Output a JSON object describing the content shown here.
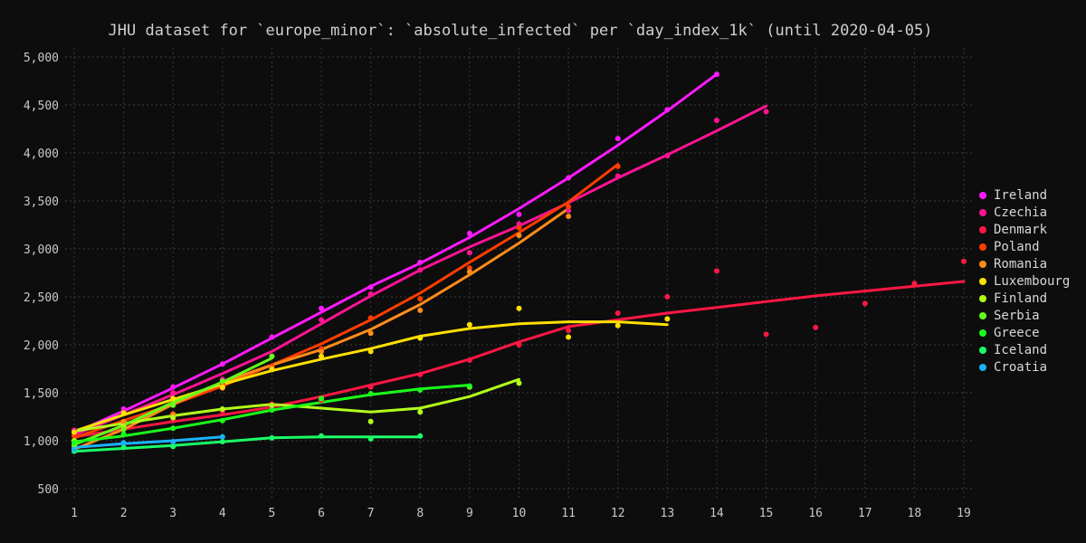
{
  "chart_data": {
    "type": "line",
    "title": "JHU dataset for `europe_minor`: `absolute_infected` per `day_index_1k` (until 2020-04-05)",
    "xlabel": "",
    "ylabel": "",
    "xlim": [
      1,
      19
    ],
    "ylim": [
      500,
      5000
    ],
    "x_ticks": [
      1,
      2,
      3,
      4,
      5,
      6,
      7,
      8,
      9,
      10,
      11,
      12,
      13,
      14,
      15,
      16,
      17,
      18,
      19
    ],
    "y_ticks": [
      500,
      1000,
      1500,
      2000,
      2500,
      3000,
      3500,
      4000,
      4500,
      5000
    ],
    "y_tick_labels": [
      "500",
      "1,000",
      "1,500",
      "2,000",
      "2,500",
      "3,000",
      "3,500",
      "4,000",
      "4,500",
      "5,000"
    ],
    "grid": true,
    "legend_position": "right",
    "series": [
      {
        "name": "Ireland",
        "color": "#ff1aff",
        "points": [
          [
            1,
            1100
          ],
          [
            2,
            1330
          ],
          [
            3,
            1560
          ],
          [
            4,
            1800
          ],
          [
            5,
            2080
          ],
          [
            6,
            2380
          ],
          [
            7,
            2600
          ],
          [
            8,
            2860
          ],
          [
            9,
            3160
          ],
          [
            10,
            3360
          ],
          [
            11,
            3740
          ],
          [
            12,
            4150
          ],
          [
            13,
            4450
          ],
          [
            14,
            4820
          ]
        ],
        "fit": [
          [
            1,
            1080
          ],
          [
            2,
            1310
          ],
          [
            3,
            1550
          ],
          [
            4,
            1800
          ],
          [
            5,
            2070
          ],
          [
            6,
            2340
          ],
          [
            7,
            2610
          ],
          [
            8,
            2850
          ],
          [
            9,
            3120
          ],
          [
            10,
            3420
          ],
          [
            11,
            3740
          ],
          [
            12,
            4080
          ],
          [
            13,
            4440
          ],
          [
            14,
            4820
          ]
        ]
      },
      {
        "name": "Czechia",
        "color": "#ff1493",
        "points": [
          [
            1,
            1110
          ],
          [
            2,
            1300
          ],
          [
            3,
            1500
          ],
          [
            4,
            1640
          ],
          [
            5,
            1880
          ],
          [
            6,
            2260
          ],
          [
            7,
            2530
          ],
          [
            8,
            2780
          ],
          [
            9,
            2960
          ],
          [
            10,
            3260
          ],
          [
            11,
            3400
          ],
          [
            12,
            3760
          ],
          [
            13,
            3970
          ],
          [
            14,
            4340
          ],
          [
            15,
            4430
          ]
        ],
        "fit": [
          [
            1,
            1060
          ],
          [
            2,
            1270
          ],
          [
            3,
            1480
          ],
          [
            4,
            1700
          ],
          [
            5,
            1930
          ],
          [
            6,
            2220
          ],
          [
            7,
            2510
          ],
          [
            8,
            2780
          ],
          [
            9,
            3020
          ],
          [
            10,
            3240
          ],
          [
            11,
            3480
          ],
          [
            12,
            3740
          ],
          [
            13,
            3980
          ],
          [
            14,
            4230
          ],
          [
            15,
            4490
          ]
        ]
      },
      {
        "name": "Denmark",
        "color": "#ff1744",
        "points": [
          [
            1,
            1070
          ],
          [
            2,
            1150
          ],
          [
            3,
            1210
          ],
          [
            4,
            1310
          ],
          [
            5,
            1380
          ],
          [
            6,
            1420
          ],
          [
            7,
            1560
          ],
          [
            8,
            1690
          ],
          [
            9,
            1840
          ],
          [
            10,
            2000
          ],
          [
            11,
            2150
          ],
          [
            12,
            2330
          ],
          [
            13,
            2500
          ],
          [
            14,
            2770
          ],
          [
            15,
            2110
          ],
          [
            16,
            2180
          ],
          [
            17,
            2430
          ],
          [
            18,
            2640
          ],
          [
            19,
            2870
          ]
        ],
        "fit": [
          [
            1,
            1040
          ],
          [
            2,
            1120
          ],
          [
            3,
            1200
          ],
          [
            4,
            1270
          ],
          [
            5,
            1350
          ],
          [
            6,
            1460
          ],
          [
            7,
            1580
          ],
          [
            8,
            1700
          ],
          [
            9,
            1850
          ],
          [
            10,
            2030
          ],
          [
            11,
            2190
          ],
          [
            12,
            2260
          ],
          [
            13,
            2330
          ],
          [
            14,
            2390
          ],
          [
            15,
            2450
          ],
          [
            16,
            2510
          ],
          [
            17,
            2560
          ],
          [
            18,
            2610
          ],
          [
            19,
            2660
          ]
        ]
      },
      {
        "name": "Poland",
        "color": "#ff3d00",
        "points": [
          [
            1,
            1050
          ],
          [
            2,
            1150
          ],
          [
            3,
            1280
          ],
          [
            4,
            1590
          ],
          [
            5,
            1780
          ],
          [
            6,
            1960
          ],
          [
            7,
            2280
          ],
          [
            8,
            2480
          ],
          [
            9,
            2800
          ],
          [
            10,
            3220
          ],
          [
            11,
            3440
          ],
          [
            12,
            3860
          ]
        ],
        "fit": [
          [
            1,
            1030
          ],
          [
            2,
            1210
          ],
          [
            3,
            1380
          ],
          [
            4,
            1570
          ],
          [
            5,
            1790
          ],
          [
            6,
            2010
          ],
          [
            7,
            2260
          ],
          [
            8,
            2540
          ],
          [
            9,
            2860
          ],
          [
            10,
            3170
          ],
          [
            11,
            3490
          ],
          [
            12,
            3880
          ]
        ]
      },
      {
        "name": "Romania",
        "color": "#ff8c1a",
        "points": [
          [
            1,
            920
          ],
          [
            2,
            1200
          ],
          [
            3,
            1270
          ],
          [
            4,
            1550
          ],
          [
            5,
            1760
          ],
          [
            6,
            1930
          ],
          [
            7,
            2120
          ],
          [
            8,
            2360
          ],
          [
            9,
            2760
          ],
          [
            10,
            3140
          ],
          [
            11,
            3340
          ]
        ],
        "fit": [
          [
            1,
            910
          ],
          [
            2,
            1120
          ],
          [
            3,
            1380
          ],
          [
            4,
            1610
          ],
          [
            5,
            1790
          ],
          [
            6,
            1950
          ],
          [
            7,
            2160
          ],
          [
            8,
            2420
          ],
          [
            9,
            2730
          ],
          [
            10,
            3060
          ],
          [
            11,
            3420
          ]
        ]
      },
      {
        "name": "Luxembourg",
        "color": "#ffe000",
        "points": [
          [
            1,
            1090
          ],
          [
            2,
            1290
          ],
          [
            3,
            1440
          ],
          [
            4,
            1560
          ],
          [
            5,
            1740
          ],
          [
            6,
            1880
          ],
          [
            7,
            1930
          ],
          [
            8,
            2070
          ],
          [
            9,
            2210
          ],
          [
            10,
            2380
          ],
          [
            11,
            2080
          ],
          [
            12,
            2200
          ],
          [
            13,
            2270
          ]
        ],
        "fit": [
          [
            1,
            1100
          ],
          [
            2,
            1270
          ],
          [
            3,
            1430
          ],
          [
            4,
            1590
          ],
          [
            5,
            1730
          ],
          [
            6,
            1850
          ],
          [
            7,
            1960
          ],
          [
            8,
            2090
          ],
          [
            9,
            2170
          ],
          [
            10,
            2220
          ],
          [
            11,
            2240
          ],
          [
            12,
            2240
          ],
          [
            13,
            2210
          ]
        ]
      },
      {
        "name": "Finland",
        "color": "#b2ff1a",
        "points": [
          [
            1,
            1000
          ],
          [
            2,
            1150
          ],
          [
            3,
            1240
          ],
          [
            4,
            1330
          ],
          [
            5,
            1370
          ],
          [
            6,
            1440
          ],
          [
            7,
            1200
          ],
          [
            8,
            1300
          ],
          [
            9,
            1560
          ],
          [
            10,
            1600
          ]
        ],
        "fit": [
          [
            1,
            1100
          ],
          [
            2,
            1180
          ],
          [
            3,
            1260
          ],
          [
            4,
            1330
          ],
          [
            5,
            1380
          ],
          [
            6,
            1340
          ],
          [
            7,
            1300
          ],
          [
            8,
            1340
          ],
          [
            9,
            1460
          ],
          [
            10,
            1640
          ]
        ]
      },
      {
        "name": "Serbia",
        "color": "#66ff1a",
        "points": [
          [
            1,
            950
          ],
          [
            2,
            1120
          ],
          [
            3,
            1370
          ],
          [
            4,
            1620
          ],
          [
            5,
            1880
          ]
        ],
        "fit": [
          [
            1,
            960
          ],
          [
            2,
            1160
          ],
          [
            3,
            1400
          ],
          [
            4,
            1610
          ],
          [
            5,
            1860
          ]
        ]
      },
      {
        "name": "Greece",
        "color": "#1aff1a",
        "points": [
          [
            1,
            980
          ],
          [
            2,
            1070
          ],
          [
            3,
            1130
          ],
          [
            4,
            1210
          ],
          [
            5,
            1320
          ],
          [
            6,
            1440
          ],
          [
            7,
            1490
          ],
          [
            8,
            1530
          ],
          [
            9,
            1570
          ]
        ],
        "fit": [
          [
            1,
            990
          ],
          [
            2,
            1050
          ],
          [
            3,
            1130
          ],
          [
            4,
            1220
          ],
          [
            5,
            1320
          ],
          [
            6,
            1400
          ],
          [
            7,
            1480
          ],
          [
            8,
            1540
          ],
          [
            9,
            1580
          ]
        ]
      },
      {
        "name": "Iceland",
        "color": "#1aff66",
        "points": [
          [
            1,
            890
          ],
          [
            2,
            930
          ],
          [
            3,
            940
          ],
          [
            4,
            990
          ],
          [
            5,
            1030
          ],
          [
            6,
            1050
          ],
          [
            7,
            1020
          ],
          [
            8,
            1050
          ]
        ],
        "fit": [
          [
            1,
            890
          ],
          [
            2,
            920
          ],
          [
            3,
            950
          ],
          [
            4,
            990
          ],
          [
            5,
            1030
          ],
          [
            6,
            1040
          ],
          [
            7,
            1040
          ],
          [
            8,
            1040
          ]
        ]
      },
      {
        "name": "Croatia",
        "color": "#1ab2ff",
        "points": [
          [
            1,
            910
          ],
          [
            2,
            980
          ],
          [
            3,
            990
          ],
          [
            4,
            1040
          ]
        ],
        "fit": [
          [
            1,
            930
          ],
          [
            2,
            970
          ],
          [
            3,
            1000
          ],
          [
            4,
            1040
          ]
        ]
      }
    ]
  }
}
